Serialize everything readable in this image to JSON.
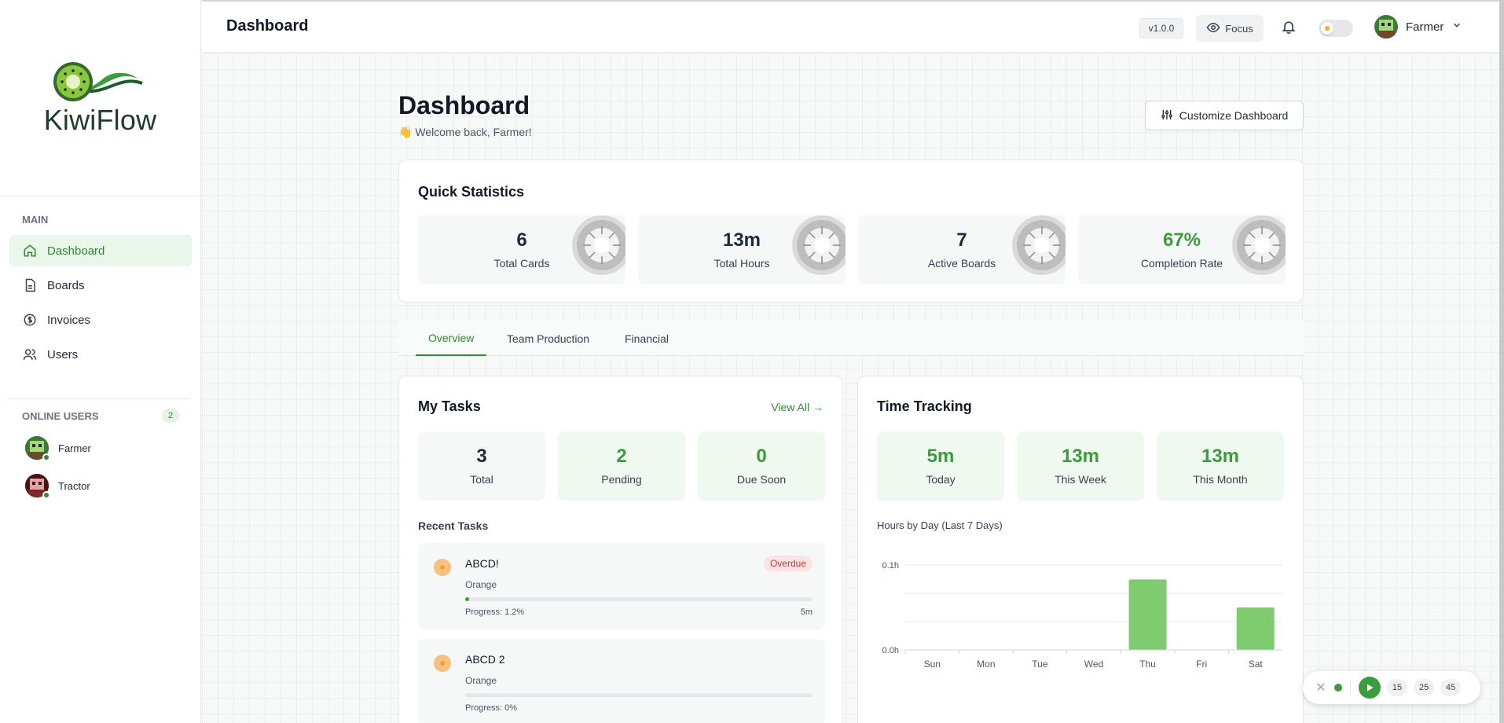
{
  "app": {
    "name": "KiwiFlow"
  },
  "sidebar": {
    "section_main": "MAIN",
    "items": [
      {
        "label": "Dashboard",
        "icon": "home-icon",
        "active": true
      },
      {
        "label": "Boards",
        "icon": "document-icon"
      },
      {
        "label": "Invoices",
        "icon": "dollar-icon"
      },
      {
        "label": "Users",
        "icon": "users-icon"
      }
    ],
    "online_title": "ONLINE USERS",
    "online_count": "2",
    "online_users": [
      {
        "name": "Farmer"
      },
      {
        "name": "Tractor"
      }
    ]
  },
  "topbar": {
    "title": "Dashboard",
    "version": "v1.0.0",
    "focus_label": "Focus",
    "user_name": "Farmer"
  },
  "page": {
    "title": "Dashboard",
    "welcome": "👋 Welcome back, Farmer!",
    "customize_label": "Customize Dashboard"
  },
  "quick_stats": {
    "title": "Quick Statistics",
    "items": [
      {
        "value": "6",
        "label": "Total Cards"
      },
      {
        "value": "13m",
        "label": "Total Hours"
      },
      {
        "value": "7",
        "label": "Active Boards"
      },
      {
        "value": "67%",
        "label": "Completion Rate"
      }
    ]
  },
  "tabs": [
    {
      "label": "Overview",
      "active": true
    },
    {
      "label": "Team Production"
    },
    {
      "label": "Financial"
    }
  ],
  "my_tasks": {
    "title": "My Tasks",
    "view_all": "View All →",
    "stats": [
      {
        "value": "3",
        "label": "Total"
      },
      {
        "value": "2",
        "label": "Pending"
      },
      {
        "value": "0",
        "label": "Due Soon"
      }
    ],
    "recent_title": "Recent Tasks",
    "recent": [
      {
        "name": "ABCD!",
        "client": "Orange",
        "progress_text": "Progress: 1.2%",
        "progress": 0.012,
        "time": "5m",
        "badge": "Overdue"
      },
      {
        "name": "ABCD 2",
        "client": "Orange",
        "progress_text": "Progress: 0%",
        "progress": 0,
        "time": "",
        "badge": ""
      }
    ]
  },
  "time_tracking": {
    "title": "Time Tracking",
    "stats": [
      {
        "value": "5m",
        "label": "Today"
      },
      {
        "value": "13m",
        "label": "This Week"
      },
      {
        "value": "13m",
        "label": "This Month"
      }
    ],
    "chart_title": "Hours by Day (Last 7 Days)"
  },
  "chart_data": {
    "type": "bar",
    "title": "Hours by Day (Last 7 Days)",
    "categories": [
      "Sun",
      "Mon",
      "Tue",
      "Wed",
      "Thu",
      "Fri",
      "Sat"
    ],
    "values": [
      0,
      0,
      0,
      0,
      0.083,
      0,
      0.05
    ],
    "y_ticks": [
      "0.1h",
      "0.0h"
    ],
    "ylim": [
      0,
      0.1
    ],
    "color": "#7fcb70"
  },
  "timer": {
    "presets": [
      "15",
      "25",
      "45"
    ]
  },
  "colors": {
    "accent": "#2f8a31",
    "accent_light": "#e9f6e9",
    "danger": "#c0392b"
  }
}
